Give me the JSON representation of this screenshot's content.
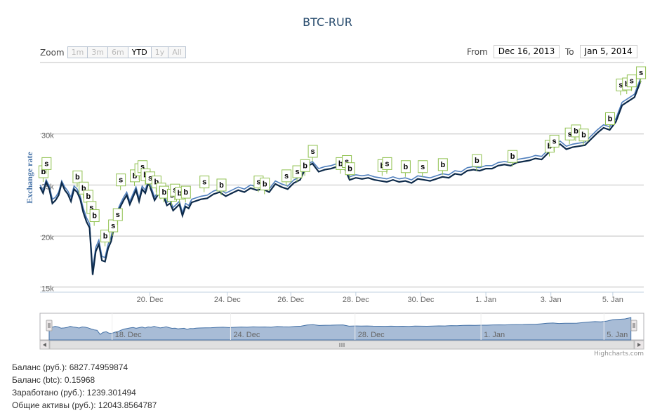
{
  "chart": {
    "title": "BTC-RUR",
    "credits": "Highcharts.com"
  },
  "zoom": {
    "label": "Zoom",
    "buttons": [
      "1m",
      "3m",
      "6m",
      "YTD",
      "1y",
      "All"
    ],
    "active": "YTD"
  },
  "range": {
    "from_label": "From",
    "from_value": "Dec 16, 2013",
    "to_label": "To",
    "to_value": "Jan 5, 2014"
  },
  "stats": {
    "balance_rub": "Баланс (руб.): 6827.74959874",
    "balance_btc": "Баланс (btc): 0.15968",
    "earned_rub": "Заработано (руб.): 1239.301494",
    "total_assets": "Общие активы (руб.): 12043.8564787"
  },
  "colors": {
    "dark_series": "#0d2a4a",
    "light_series": "#4f7fbd",
    "flag_border": "#90c150",
    "navigator_fill": "#a8bcd6",
    "navigator_line": "#4572a7",
    "title_color": "#274b6d",
    "axis_title_color": "#4572a7"
  },
  "chart_data": {
    "type": "line",
    "title": "BTC-RUR",
    "ylabel": "Exchange rate",
    "xlabel": "",
    "ylim": [
      14500,
      37000
    ],
    "y_ticks": [
      15000,
      20000,
      25000,
      30000
    ],
    "y_tick_labels": [
      "15k",
      "20k",
      "25k",
      "30k"
    ],
    "x_ticks": [
      {
        "x": 3.55,
        "label": "20. Dec"
      },
      {
        "x": 6.05,
        "label": "24. Dec"
      },
      {
        "x": 8.1,
        "label": "26. Dec"
      },
      {
        "x": 10.2,
        "label": "28. Dec"
      },
      {
        "x": 12.3,
        "label": "30. Dec"
      },
      {
        "x": 14.4,
        "label": "1. Jan"
      },
      {
        "x": 16.5,
        "label": "3. Jan"
      },
      {
        "x": 18.5,
        "label": "5. Jan"
      }
    ],
    "xlim": [
      0,
      19.5
    ],
    "series": [
      {
        "style": "dark",
        "x": [
          0,
          0.1,
          0.2,
          0.3,
          0.4,
          0.5,
          0.6,
          0.7,
          0.8,
          0.9,
          1.0,
          1.1,
          1.2,
          1.3,
          1.4,
          1.5,
          1.6,
          1.7,
          1.8,
          1.9,
          2.0,
          2.1,
          2.2,
          2.3,
          2.4,
          2.5,
          2.6,
          2.7,
          2.8,
          2.9,
          3.0,
          3.1,
          3.2,
          3.3,
          3.4,
          3.5,
          3.6,
          3.7,
          3.8,
          3.9,
          4.0,
          4.1,
          4.2,
          4.3,
          4.4,
          4.5,
          4.6,
          4.7,
          4.8,
          4.9,
          5.0,
          5.2,
          5.4,
          5.6,
          5.8,
          6.0,
          6.2,
          6.4,
          6.6,
          6.8,
          7.0,
          7.2,
          7.4,
          7.6,
          7.8,
          8.0,
          8.2,
          8.4,
          8.6,
          8.8,
          9.0,
          9.2,
          9.4,
          9.6,
          9.8,
          10.0,
          10.2,
          10.4,
          10.6,
          10.8,
          11.0,
          11.2,
          11.4,
          11.6,
          11.8,
          12.0,
          12.2,
          12.4,
          12.6,
          12.8,
          13.0,
          13.2,
          13.4,
          13.6,
          13.8,
          14.0,
          14.2,
          14.4,
          14.6,
          14.8,
          15.0,
          15.2,
          15.4,
          15.6,
          15.8,
          16.0,
          16.2,
          16.4,
          16.6,
          16.8,
          17.0,
          17.2,
          17.4,
          17.6,
          17.8,
          18.0,
          18.2,
          18.4,
          18.6,
          18.8,
          19.0,
          19.2,
          19.4
        ],
        "values": [
          24800,
          24200,
          25300,
          24600,
          23200,
          23500,
          24000,
          25200,
          24500,
          24100,
          23400,
          24600,
          24300,
          23600,
          22300,
          21400,
          20800,
          16200,
          18500,
          19200,
          17600,
          17500,
          18800,
          19500,
          21000,
          22200,
          22900,
          23500,
          24000,
          23100,
          23800,
          24500,
          23400,
          24600,
          24200,
          25200,
          24400,
          23500,
          24000,
          24800,
          23800,
          23000,
          23200,
          22500,
          22800,
          23100,
          22000,
          22900,
          22700,
          23300,
          23400,
          23600,
          23700,
          24100,
          24300,
          23900,
          24200,
          24500,
          24300,
          24700,
          24500,
          24600,
          24300,
          25100,
          24800,
          24600,
          25200,
          25500,
          26800,
          27100,
          26300,
          26500,
          26600,
          26800,
          26900,
          25500,
          25700,
          25600,
          25700,
          25500,
          25400,
          25300,
          25500,
          25300,
          25400,
          25200,
          25600,
          25500,
          25400,
          25600,
          25800,
          25700,
          26100,
          26000,
          26400,
          26500,
          26400,
          26600,
          26600,
          26900,
          27000,
          26900,
          27200,
          27300,
          27400,
          27600,
          27500,
          28100,
          28700,
          29000,
          28500,
          28700,
          28800,
          28900,
          29500,
          30100,
          30600,
          30400,
          31200,
          32800,
          33200,
          33600,
          35200
        ]
      },
      {
        "style": "light",
        "x": [
          0,
          0.1,
          0.2,
          0.3,
          0.4,
          0.5,
          0.6,
          0.7,
          0.8,
          0.9,
          1.0,
          1.1,
          1.2,
          1.3,
          1.4,
          1.5,
          1.6,
          1.7,
          1.8,
          1.9,
          2.0,
          2.1,
          2.2,
          2.3,
          2.4,
          2.5,
          2.6,
          2.7,
          2.8,
          2.9,
          3.0,
          3.1,
          3.2,
          3.3,
          3.4,
          3.5,
          3.6,
          3.7,
          3.8,
          3.9,
          4.0,
          4.1,
          4.2,
          4.3,
          4.4,
          4.5,
          4.6,
          4.7,
          4.8,
          4.9,
          5.0,
          5.2,
          5.4,
          5.6,
          5.8,
          6.0,
          6.2,
          6.4,
          6.6,
          6.8,
          7.0,
          7.2,
          7.4,
          7.6,
          7.8,
          8.0,
          8.2,
          8.4,
          8.6,
          8.8,
          9.0,
          9.2,
          9.4,
          9.6,
          9.8,
          10.0,
          10.2,
          10.4,
          10.6,
          10.8,
          11.0,
          11.2,
          11.4,
          11.6,
          11.8,
          12.0,
          12.2,
          12.4,
          12.6,
          12.8,
          13.0,
          13.2,
          13.4,
          13.6,
          13.8,
          14.0,
          14.2,
          14.4,
          14.6,
          14.8,
          15.0,
          15.2,
          15.4,
          15.6,
          15.8,
          16.0,
          16.2,
          16.4,
          16.6,
          16.8,
          17.0,
          17.2,
          17.4,
          17.6,
          17.8,
          18.0,
          18.2,
          18.4,
          18.6,
          18.8,
          19.0,
          19.2,
          19.4
        ],
        "values": [
          25000,
          24500,
          25500,
          24900,
          23600,
          23800,
          24300,
          25400,
          24800,
          24400,
          23800,
          24900,
          24600,
          23900,
          22700,
          21800,
          21200,
          16800,
          18900,
          19600,
          18000,
          17900,
          19200,
          19900,
          21400,
          22500,
          23200,
          23800,
          24300,
          23400,
          24100,
          24800,
          23700,
          24900,
          24500,
          25500,
          24700,
          23800,
          24300,
          25100,
          24100,
          23300,
          23500,
          22800,
          23100,
          23400,
          22300,
          23200,
          23000,
          23600,
          23700,
          23900,
          24000,
          24400,
          24600,
          24200,
          24500,
          24800,
          24600,
          25000,
          24800,
          24900,
          24600,
          25400,
          25100,
          24900,
          25500,
          25800,
          27000,
          27300,
          26600,
          26800,
          26900,
          27100,
          27200,
          25800,
          26000,
          25900,
          26000,
          25800,
          25700,
          25600,
          25800,
          25600,
          25700,
          25500,
          25900,
          25800,
          25700,
          25900,
          26100,
          26000,
          26400,
          26300,
          26700,
          26800,
          26700,
          26900,
          26900,
          27200,
          27300,
          27200,
          27500,
          27600,
          27700,
          27900,
          27800,
          28400,
          29000,
          29300,
          28800,
          29000,
          29100,
          29200,
          29800,
          30400,
          30900,
          30700,
          31500,
          33100,
          33500,
          33900,
          35500
        ]
      }
    ],
    "flags": [
      {
        "x": 0.1,
        "y": 25300,
        "label": "b"
      },
      {
        "x": 0.2,
        "y": 26100,
        "label": "s"
      },
      {
        "x": 1.2,
        "y": 24800,
        "label": "b"
      },
      {
        "x": 1.4,
        "y": 23700,
        "label": "b"
      },
      {
        "x": 1.55,
        "y": 22900,
        "label": "b"
      },
      {
        "x": 1.65,
        "y": 21800,
        "label": "s"
      },
      {
        "x": 1.75,
        "y": 21000,
        "label": "b"
      },
      {
        "x": 2.1,
        "y": 19000,
        "label": "b"
      },
      {
        "x": 2.35,
        "y": 20000,
        "label": "s"
      },
      {
        "x": 2.5,
        "y": 21100,
        "label": "s"
      },
      {
        "x": 2.6,
        "y": 24500,
        "label": "s"
      },
      {
        "x": 3.05,
        "y": 24900,
        "label": "b"
      },
      {
        "x": 3.2,
        "y": 25500,
        "label": "s"
      },
      {
        "x": 3.3,
        "y": 25800,
        "label": "s"
      },
      {
        "x": 3.4,
        "y": 25000,
        "label": "b"
      },
      {
        "x": 3.55,
        "y": 24700,
        "label": "s"
      },
      {
        "x": 3.75,
        "y": 24300,
        "label": "b"
      },
      {
        "x": 3.9,
        "y": 23600,
        "label": "b"
      },
      {
        "x": 4.0,
        "y": 23300,
        "label": "b"
      },
      {
        "x": 4.25,
        "y": 23000,
        "label": "s"
      },
      {
        "x": 4.35,
        "y": 23500,
        "label": "s"
      },
      {
        "x": 4.5,
        "y": 23200,
        "label": "b"
      },
      {
        "x": 4.7,
        "y": 23300,
        "label": "b"
      },
      {
        "x": 5.3,
        "y": 24300,
        "label": "s"
      },
      {
        "x": 5.85,
        "y": 24000,
        "label": "b"
      },
      {
        "x": 7.05,
        "y": 24300,
        "label": "s"
      },
      {
        "x": 7.25,
        "y": 24100,
        "label": "b"
      },
      {
        "x": 7.95,
        "y": 24900,
        "label": "s"
      },
      {
        "x": 8.3,
        "y": 25300,
        "label": "s"
      },
      {
        "x": 8.55,
        "y": 25900,
        "label": "b"
      },
      {
        "x": 8.8,
        "y": 27300,
        "label": "s"
      },
      {
        "x": 9.7,
        "y": 26100,
        "label": "b"
      },
      {
        "x": 9.9,
        "y": 26300,
        "label": "s"
      },
      {
        "x": 10.0,
        "y": 25600,
        "label": "b"
      },
      {
        "x": 11.05,
        "y": 25900,
        "label": "b"
      },
      {
        "x": 11.2,
        "y": 26100,
        "label": "s"
      },
      {
        "x": 11.8,
        "y": 25800,
        "label": "b"
      },
      {
        "x": 12.35,
        "y": 25800,
        "label": "s"
      },
      {
        "x": 13.0,
        "y": 26000,
        "label": "b"
      },
      {
        "x": 14.1,
        "y": 26400,
        "label": "b"
      },
      {
        "x": 15.25,
        "y": 26800,
        "label": "b"
      },
      {
        "x": 16.45,
        "y": 27800,
        "label": "b"
      },
      {
        "x": 16.6,
        "y": 28300,
        "label": "s"
      },
      {
        "x": 17.1,
        "y": 29000,
        "label": "s"
      },
      {
        "x": 17.3,
        "y": 29300,
        "label": "b"
      },
      {
        "x": 17.55,
        "y": 28900,
        "label": "b"
      },
      {
        "x": 18.4,
        "y": 30500,
        "label": "b"
      },
      {
        "x": 18.75,
        "y": 33800,
        "label": "s"
      },
      {
        "x": 18.95,
        "y": 33900,
        "label": "b"
      },
      {
        "x": 19.1,
        "y": 34200,
        "label": "s"
      },
      {
        "x": 19.4,
        "y": 35000,
        "label": "s"
      }
    ],
    "navigator_ticks": [
      {
        "x": 2.1,
        "label": "18. Dec"
      },
      {
        "x": 6.05,
        "label": "24. Dec"
      },
      {
        "x": 10.2,
        "label": "28. Dec"
      },
      {
        "x": 14.4,
        "label": "1. Jan"
      },
      {
        "x": 18.5,
        "label": "5. Jan"
      }
    ],
    "grid": true
  }
}
